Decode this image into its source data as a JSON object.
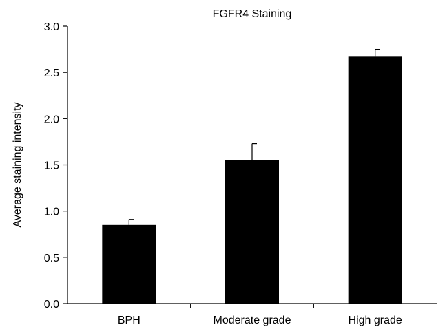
{
  "chart_data": {
    "type": "bar",
    "title": "FGFR4 Staining",
    "xlabel": "",
    "ylabel": "Average staining intensity",
    "categories": [
      "BPH",
      "Moderate grade",
      "High grade"
    ],
    "values": [
      0.85,
      1.55,
      2.67
    ],
    "errors": [
      0.06,
      0.18,
      0.08
    ],
    "ylim": [
      0,
      3.0
    ],
    "yticks": [
      0.0,
      0.5,
      1.0,
      1.5,
      2.0,
      2.5,
      3.0
    ],
    "ytick_labels": [
      "0.0",
      "0.5",
      "1.0",
      "1.5",
      "2.0",
      "2.5",
      "3.0"
    ],
    "grid": false,
    "bar_color": "#000000",
    "axis_color": "#000000"
  }
}
